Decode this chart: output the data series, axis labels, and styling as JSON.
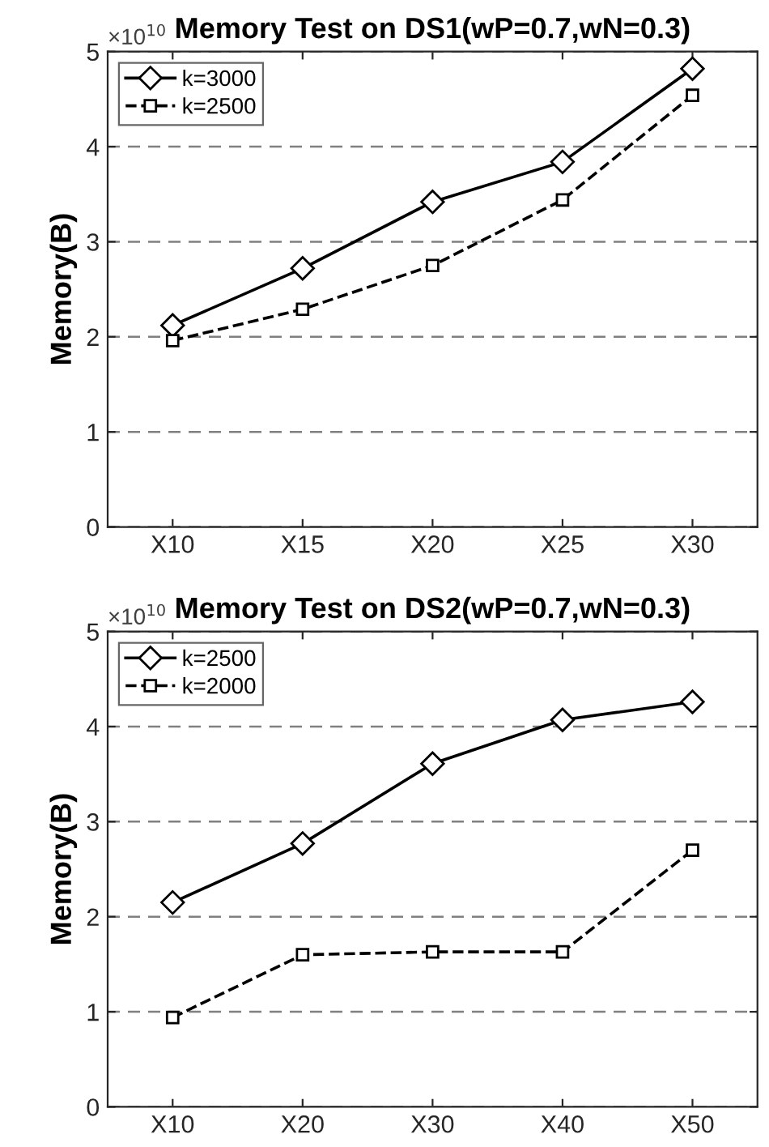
{
  "chart_data": [
    {
      "type": "line",
      "title": "Memory Test on DS1(wP=0.7,wN=0.3)",
      "ylabel": "Memory(B)",
      "annotations": [
        "×10$^{10}$"
      ],
      "categories": [
        "X10",
        "X15",
        "X20",
        "X25",
        "X30"
      ],
      "ylim": [
        0,
        5
      ],
      "yticks": [
        0,
        1,
        2,
        3,
        4,
        5
      ],
      "grid": "y",
      "legend": "top left",
      "series": [
        {
          "name": "k=3000",
          "color": "#000000",
          "marker": "diamond",
          "line_style": "solid",
          "values": [
            2.12,
            2.72,
            3.42,
            3.84,
            4.82
          ]
        },
        {
          "name": "k=2500",
          "color": "#000000",
          "marker": "square",
          "line_style": "dashed",
          "values": [
            1.96,
            2.29,
            2.75,
            3.44,
            4.54
          ]
        }
      ]
    },
    {
      "type": "line",
      "title": "Memory Test on DS2(wP=0.7,wN=0.3)",
      "ylabel": "Memory(B)",
      "annotations": [
        "×10$^{10}$"
      ],
      "categories": [
        "X10",
        "X20",
        "X30",
        "X40",
        "X50"
      ],
      "ylim": [
        0,
        5
      ],
      "yticks": [
        0,
        1,
        2,
        3,
        4,
        5
      ],
      "grid": "y",
      "legend": "top left",
      "series": [
        {
          "name": "k=2500",
          "color": "#000000",
          "marker": "diamond",
          "line_style": "solid",
          "values": [
            2.15,
            2.77,
            3.61,
            4.07,
            4.26
          ]
        },
        {
          "name": "k=2000",
          "color": "#000000",
          "marker": "square",
          "line_style": "dashed",
          "values": [
            0.94,
            1.6,
            1.63,
            1.63,
            2.7
          ]
        }
      ]
    }
  ]
}
